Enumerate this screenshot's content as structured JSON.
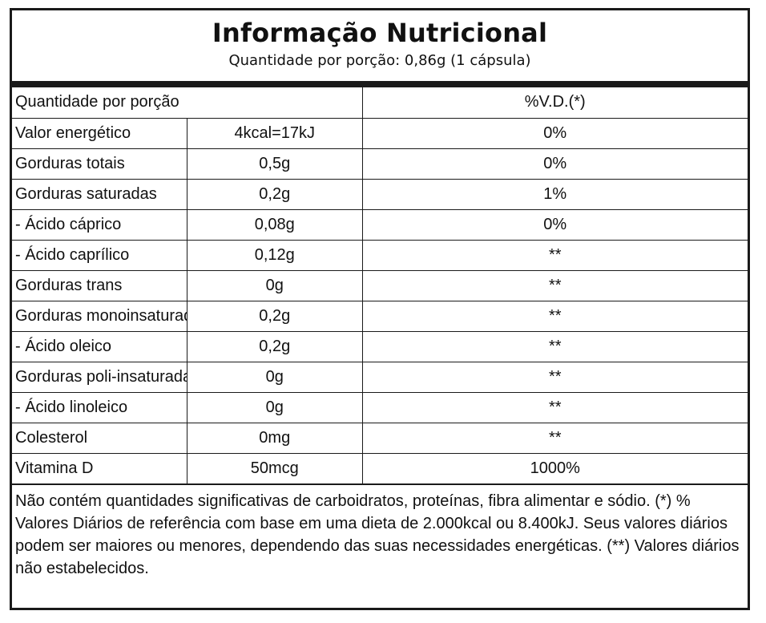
{
  "header": {
    "title": "Informação Nutricional",
    "subtitle": "Quantidade por porção: 0,86g (1 cápsula)"
  },
  "table": {
    "head": {
      "label": "Quantidade por porção",
      "amount": "",
      "dv": "%V.D.(*)"
    },
    "rows": [
      {
        "label": "Valor energético",
        "amount": "4kcal=17kJ",
        "dv": "0%"
      },
      {
        "label": "Gorduras totais",
        "amount": "0,5g",
        "dv": "0%"
      },
      {
        "label": "Gorduras saturadas",
        "amount": "0,2g",
        "dv": "1%"
      },
      {
        "label": "- Ácido cáprico",
        "amount": "0,08g",
        "dv": "0%"
      },
      {
        "label": "- Ácido caprílico",
        "amount": "0,12g",
        "dv": "**"
      },
      {
        "label": "Gorduras trans",
        "amount": "0g",
        "dv": "**"
      },
      {
        "label": "Gorduras monoinsaturadas",
        "amount": "0,2g",
        "dv": "**"
      },
      {
        "label": "- Ácido oleico",
        "amount": "0,2g",
        "dv": "**"
      },
      {
        "label": "Gorduras poli-insaturadas",
        "amount": "0g",
        "dv": "**"
      },
      {
        "label": "- Ácido linoleico",
        "amount": "0g",
        "dv": "**"
      },
      {
        "label": "Colesterol",
        "amount": "0mg",
        "dv": "**"
      },
      {
        "label": "Vitamina D",
        "amount": "50mcg",
        "dv": "1000%"
      }
    ]
  },
  "footnote": "Não contém quantidades significativas de carboidratos, proteínas, fibra alimentar e sódio. (*) % Valores Diários de referência com base em uma dieta de 2.000kcal ou 8.400kJ. Seus valores diários podem ser maiores ou menores, dependendo das suas necessidades energéticas. (**) Valores diários não estabelecidos."
}
